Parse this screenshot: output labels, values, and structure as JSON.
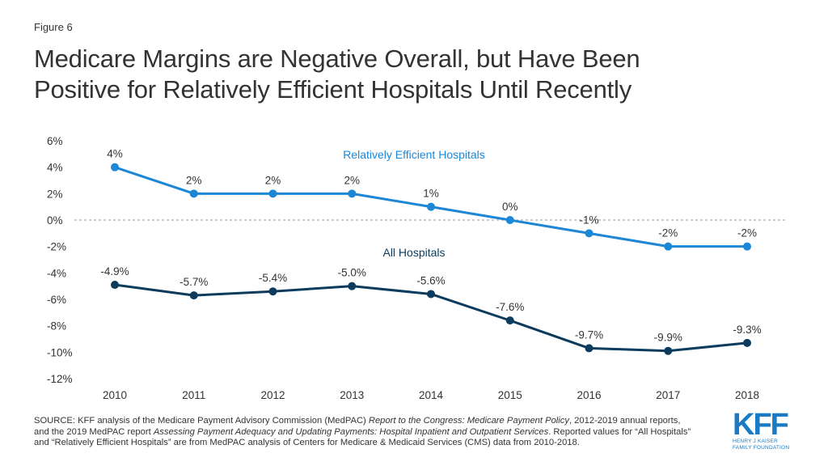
{
  "figure_label": "Figure 6",
  "title_lines": [
    "Medicare Margins are Negative Overall, but Have Been",
    "Positive for Relatively Efficient Hospitals Until Recently"
  ],
  "source": {
    "p1": "SOURCE: KFF analysis of the Medicare Payment Advisory Commission (MedPAC) ",
    "i1": "Report to the Congress: Medicare Payment Policy",
    "p2": ", 2012-2019 annual reports, and the 2019 MedPAC report ",
    "i2": "Assessing Payment Adequacy and Updating Payments: Hospital Inpatient and Outpatient Services",
    "p3": ". Reported values for “All Hospitals” and “Relatively Efficient Hospitals” are from MedPAC analysis of Centers for Medicare & Medicaid Services (CMS) data from 2010-2018."
  },
  "logo": {
    "mark": "KFF",
    "line1": "HENRY J KAISER",
    "line2": "FAMILY FOUNDATION"
  },
  "colors": {
    "efficient": "#1b87d6",
    "all": "#0c3b5e",
    "zero_line": "#999999"
  },
  "chart_data": {
    "type": "line",
    "x": [
      "2010",
      "2011",
      "2012",
      "2013",
      "2014",
      "2015",
      "2016",
      "2017",
      "2018"
    ],
    "ylim": [
      -12,
      6
    ],
    "yticks": [
      "6%",
      "4%",
      "2%",
      "0%",
      "-2%",
      "-4%",
      "-6%",
      "-8%",
      "-10%",
      "-12%"
    ],
    "ytick_values": [
      6,
      4,
      2,
      0,
      -2,
      -4,
      -6,
      -8,
      -10,
      -12
    ],
    "grid": false,
    "zero_line": "dashed",
    "series": [
      {
        "name": "Relatively Efficient Hospitals",
        "values": [
          4,
          2,
          2,
          2,
          1,
          0,
          -1,
          -2,
          -2
        ],
        "labels": [
          "4%",
          "2%",
          "2%",
          "2%",
          "1%",
          "0%",
          "-1%",
          "-2%",
          "-2%"
        ]
      },
      {
        "name": "All Hospitals",
        "values": [
          -4.9,
          -5.7,
          -5.4,
          -5.0,
          -5.6,
          -7.6,
          -9.7,
          -9.9,
          -9.3
        ],
        "labels": [
          "-4.9%",
          "-5.7%",
          "-5.4%",
          "-5.0%",
          "-5.6%",
          "-7.6%",
          "-9.7%",
          "-9.9%",
          "-9.3%"
        ]
      }
    ]
  }
}
